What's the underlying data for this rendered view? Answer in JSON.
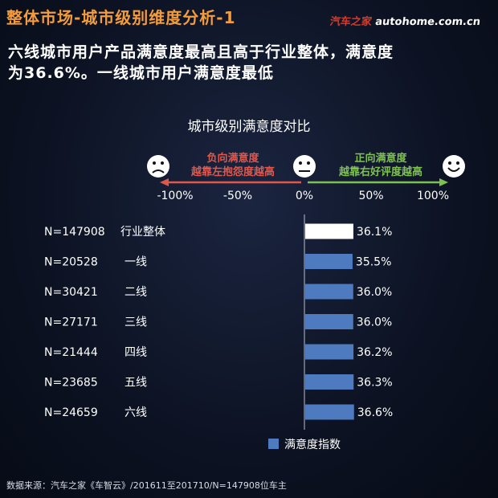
{
  "header": {
    "title": "整体市场-城市级别维度分析-1",
    "brand_cn": "汽车之家",
    "brand_en": "autohome.com.cn"
  },
  "subtitle": {
    "line1": "六线城市用户产品满意度最高且高于行业整体，满意度",
    "line2": "为36.6%。一线城市用户满意度最低"
  },
  "scale": {
    "negative_label_line1": "负向满意度",
    "negative_label_line2": "越靠左抱怨度越高",
    "positive_label_line1": "正向满意度",
    "positive_label_line2": "越靠右好评度越高",
    "ticks": [
      "-100%",
      "-50%",
      "0%",
      "50%",
      "100%"
    ],
    "negative_color": "#e0584c",
    "positive_color": "#7ec152"
  },
  "icons": [
    "sad-face-icon",
    "neutral-face-icon",
    "happy-face-icon"
  ],
  "chart_data": {
    "type": "bar",
    "title": "城市级别满意度对比",
    "categories": [
      "行业整体",
      "一线",
      "二线",
      "三线",
      "四线",
      "五线",
      "六线"
    ],
    "sample_sizes": [
      "N=147908",
      "N=20528",
      "N=30421",
      "N=27171",
      "N=21444",
      "N=23685",
      "N=24659"
    ],
    "series": [
      {
        "name": "满意度指数",
        "values": [
          36.1,
          35.5,
          36.0,
          36.0,
          36.2,
          36.3,
          36.6
        ],
        "labels": [
          "36.1%",
          "35.5%",
          "36.0%",
          "36.0%",
          "36.2%",
          "36.3%",
          "36.6%"
        ]
      }
    ],
    "xlim": [
      -100,
      100
    ],
    "highlight_color": "#ffffff",
    "bar_color": "#4e7bc0",
    "legend_position": "bottom"
  },
  "footer": {
    "source": "数据来源：汽车之家《车智云》/201611至201710/N=147908位车主"
  }
}
